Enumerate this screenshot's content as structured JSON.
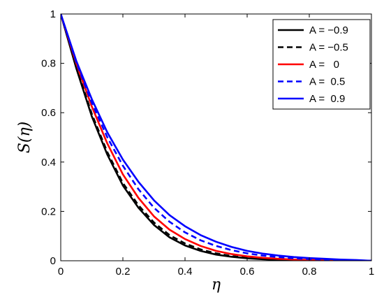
{
  "chart_data": {
    "type": "line",
    "xlabel": "η",
    "ylabel": "S(η)",
    "xlim": [
      0,
      1
    ],
    "ylim": [
      0,
      1
    ],
    "xticks": [
      "0",
      "0.2",
      "0.4",
      "0.6",
      "0.8",
      "1"
    ],
    "yticks": [
      "0",
      "0.2",
      "0.4",
      "0.6",
      "0.8",
      "1"
    ],
    "grid": false,
    "legend_position": "top-right",
    "x": [
      0,
      0.05,
      0.1,
      0.15,
      0.2,
      0.25,
      0.3,
      0.35,
      0.4,
      0.45,
      0.5,
      0.55,
      0.6,
      0.65,
      0.7,
      0.75,
      0.8,
      0.85,
      0.9,
      0.95,
      1.0
    ],
    "series": [
      {
        "name": "A = −0.9",
        "color": "#000000",
        "dash": "solid",
        "values": [
          1.0,
          0.78,
          0.585,
          0.43,
          0.305,
          0.215,
          0.145,
          0.095,
          0.062,
          0.04,
          0.025,
          0.016,
          0.01,
          0.006,
          0.004,
          0.002,
          0.001,
          0.0006,
          0.0003,
          0.0001,
          0.0
        ]
      },
      {
        "name": "A = −0.5",
        "color": "#000000",
        "dash": "dashed",
        "values": [
          1.0,
          0.785,
          0.595,
          0.44,
          0.315,
          0.225,
          0.155,
          0.104,
          0.07,
          0.046,
          0.03,
          0.019,
          0.012,
          0.008,
          0.005,
          0.003,
          0.002,
          0.001,
          0.0006,
          0.0002,
          0.0
        ]
      },
      {
        "name": "A =   0",
        "color": "#ff0000",
        "dash": "solid",
        "values": [
          1.0,
          0.8,
          0.625,
          0.475,
          0.35,
          0.255,
          0.18,
          0.126,
          0.088,
          0.06,
          0.04,
          0.027,
          0.018,
          0.012,
          0.008,
          0.005,
          0.0035,
          0.002,
          0.0012,
          0.0006,
          0.0
        ]
      },
      {
        "name": "A =  0.5",
        "color": "#0000ff",
        "dash": "dashed",
        "values": [
          1.0,
          0.805,
          0.64,
          0.5,
          0.385,
          0.29,
          0.215,
          0.158,
          0.115,
          0.083,
          0.06,
          0.043,
          0.03,
          0.021,
          0.015,
          0.01,
          0.007,
          0.005,
          0.003,
          0.0015,
          0.0
        ]
      },
      {
        "name": "A =  0.9",
        "color": "#0000ff",
        "dash": "solid",
        "values": [
          1.0,
          0.81,
          0.655,
          0.52,
          0.41,
          0.32,
          0.245,
          0.185,
          0.14,
          0.104,
          0.077,
          0.056,
          0.04,
          0.029,
          0.021,
          0.015,
          0.011,
          0.008,
          0.005,
          0.003,
          0.0
        ]
      }
    ]
  }
}
